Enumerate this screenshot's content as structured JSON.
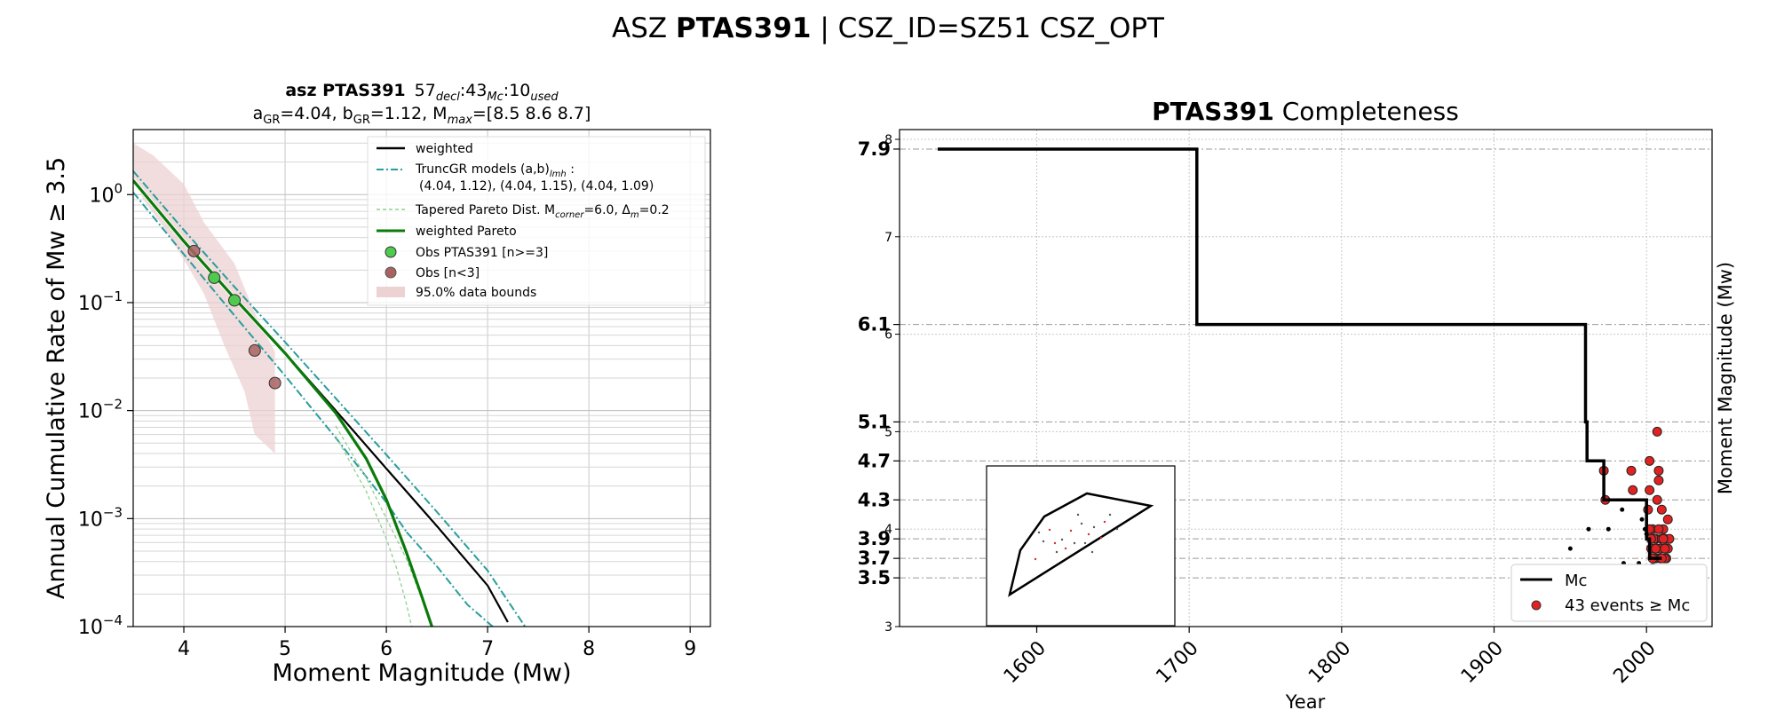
{
  "figure": {
    "title_prefix": "ASZ ",
    "title_bold": "PTAS391",
    "title_suffix": " | CSZ_ID=SZ51 CSZ_OPT"
  },
  "left": {
    "title_line1_prefix": "asz ",
    "title_line1_bold": "PTAS391",
    "title_decl": "57",
    "title_decl_sub": "decl",
    "title_mc": ":43",
    "title_mc_sub": "Mc",
    "title_used": ":10",
    "title_used_sub": "used",
    "title_line2_a": "a",
    "title_line2_a_sub": "GR",
    "title_line2_a_val": "=4.04,  b",
    "title_line2_b_sub": "GR",
    "title_line2_b_val": "=1.12, M",
    "title_line2_m_sub": "max",
    "title_line2_m_val": "=[8.5 8.6 8.7]",
    "legend": {
      "weighted": "weighted",
      "truncgr_a": "TruncGR models (a,b)",
      "truncgr_sub": "lmh",
      "truncgr_b": " :",
      "truncgr_vals": "(4.04, 1.12), (4.04, 1.15), (4.04, 1.09)",
      "tapered_a": "Tapered Pareto Dist. M",
      "tapered_sub1": "corner",
      "tapered_b": "=6.0, Δ",
      "tapered_sub2": "m",
      "tapered_c": "=0.2",
      "weighted_pareto": "weighted Pareto",
      "obs_ge3": "Obs PTAS391 [n>=3]",
      "obs_lt3": "Obs [n<3]",
      "bounds": "95.0% data bounds"
    }
  },
  "right": {
    "title_bold": "PTAS391",
    "title_rest": " Completeness",
    "legend_mc": "Mc",
    "legend_events": "43 events ≥ Mc"
  },
  "chart_data": [
    {
      "type": "line",
      "xlabel": "Moment Magnitude (Mw)",
      "ylabel": "Annual Cumulative Rate of Mw  ≥  3.5",
      "xlim": [
        3.5,
        9.2
      ],
      "ylim": [
        0.0001,
        4
      ],
      "yscale": "log",
      "xticks": [
        4,
        5,
        6,
        7,
        8,
        9
      ],
      "yticks": [
        1,
        0.1,
        0.01,
        0.001,
        0.0001
      ],
      "ytick_labels": [
        {
          "base": "10",
          "exp": "0"
        },
        {
          "base": "10",
          "exp": "−1"
        },
        {
          "base": "10",
          "exp": "−2"
        },
        {
          "base": "10",
          "exp": "−3"
        },
        {
          "base": "10",
          "exp": "−4"
        }
      ],
      "grid": true,
      "legend_position": "top-right",
      "series": [
        {
          "name": "weighted",
          "color": "#000000",
          "x": [
            3.5,
            4.0,
            4.5,
            5.0,
            5.5,
            6.0,
            6.5,
            7.0,
            7.2
          ],
          "y": [
            1.35,
            0.37,
            0.11,
            0.034,
            0.01,
            0.0029,
            0.00085,
            0.00024,
            0.00011
          ]
        },
        {
          "name": "TruncGR models (a,b)lmh",
          "color": "#2a9d9d",
          "lines": [
            {
              "x": [
                3.5,
                4.0,
                4.5,
                5.0,
                5.5,
                6.0,
                6.5,
                7.0,
                7.37
              ],
              "y": [
                1.65,
                0.47,
                0.14,
                0.043,
                0.013,
                0.0039,
                0.00115,
                0.00033,
                0.0001
              ]
            },
            {
              "x": [
                3.5,
                4.0,
                4.5,
                5.0,
                5.5,
                6.0,
                6.2
              ],
              "y": [
                1.05,
                0.28,
                0.076,
                0.021,
                0.0056,
                0.00141,
                0.00075
              ]
            },
            {
              "x": [
                6.2,
                6.5,
                6.8,
                7.05
              ],
              "y": [
                0.00075,
                0.00036,
                0.00016,
                0.0001
              ]
            }
          ]
        },
        {
          "name": "Tapered Pareto Dist.",
          "color": "#8fd08f",
          "lines": [
            {
              "x": [
                5.5,
                5.8,
                6.0,
                6.1,
                6.2,
                6.25
              ],
              "y": [
                0.0058,
                0.0018,
                0.00065,
                0.00035,
                0.00016,
                0.0001
              ]
            },
            {
              "x": [
                5.5,
                5.8,
                6.0,
                6.2,
                6.35,
                6.45
              ],
              "y": [
                0.0072,
                0.0024,
                0.001,
                0.00042,
                0.00018,
                0.0001
              ]
            }
          ]
        },
        {
          "name": "weighted Pareto",
          "color": "#0a7a0a",
          "x": [
            3.5,
            4.0,
            4.5,
            5.0,
            5.5,
            5.8,
            6.0,
            6.2,
            6.35,
            6.45
          ],
          "y": [
            1.35,
            0.37,
            0.11,
            0.034,
            0.0095,
            0.0036,
            0.0015,
            0.00048,
            0.00019,
            0.0001
          ]
        }
      ],
      "points": [
        {
          "name": "Obs PTAS391 [n>=3]",
          "color": "#4ecb4e",
          "x": [
            4.3,
            4.5
          ],
          "y": [
            0.17,
            0.105
          ]
        },
        {
          "name": "Obs [n<3]",
          "color": "#a86262",
          "x": [
            4.1,
            4.7,
            4.9
          ],
          "y": [
            0.3,
            0.036,
            0.018
          ]
        }
      ],
      "bounds": {
        "name": "95.0% data bounds",
        "color": "#ecd2d2",
        "upper": [
          [
            3.5,
            3.0
          ],
          [
            3.7,
            2.3
          ],
          [
            4.0,
            1.25
          ],
          [
            4.2,
            0.55
          ],
          [
            4.5,
            0.23
          ],
          [
            4.7,
            0.08
          ],
          [
            4.9,
            0.035
          ]
        ],
        "lower": [
          [
            4.9,
            0.004
          ],
          [
            4.7,
            0.006
          ],
          [
            4.6,
            0.015
          ],
          [
            4.4,
            0.04
          ],
          [
            4.2,
            0.12
          ],
          [
            4.0,
            0.25
          ],
          [
            3.8,
            0.5
          ],
          [
            3.6,
            0.9
          ],
          [
            3.5,
            1.5
          ]
        ]
      }
    },
    {
      "type": "line",
      "xlabel": "Year",
      "ylabel": "Moment Magnitude (Mw)",
      "xlim": [
        1510,
        2043
      ],
      "ylim": [
        3,
        8.1
      ],
      "xticks": [
        1600,
        1700,
        1800,
        1900,
        2000
      ],
      "yticks_minor": [
        3,
        4,
        5,
        6,
        7,
        8
      ],
      "yticks_major": [
        3.5,
        3.7,
        3.9,
        4.3,
        4.7,
        5.1,
        6.1,
        7.9
      ],
      "grid": true,
      "legend_position": "bottom-right",
      "series": [
        {
          "name": "Mc",
          "color": "#000000",
          "x": [
            1535,
            1705,
            1705,
            1960,
            1960,
            1961,
            1961,
            1972,
            1972,
            2000,
            2000,
            2002,
            2002,
            2010
          ],
          "y": [
            7.9,
            7.9,
            6.1,
            6.1,
            5.1,
            5.1,
            4.7,
            4.7,
            4.3,
            4.3,
            3.9,
            3.9,
            3.7,
            3.7
          ]
        }
      ],
      "points": [
        {
          "name": "43 events ≥ Mc",
          "color": "#e02222",
          "x": [
            1972,
            1973,
            1990,
            1991,
            2002,
            2002,
            2003,
            2004,
            2005,
            2006,
            2007,
            2008,
            2009,
            2010,
            2011,
            2012,
            2013,
            2014,
            2015,
            2001,
            2003,
            2005,
            2007,
            2009,
            2011,
            2013,
            2004,
            2006,
            2008,
            2010,
            2012,
            2014,
            2003,
            2005,
            2007,
            2009,
            2011,
            2002,
            2004,
            2006,
            2008,
            2010,
            2012
          ],
          "y": [
            4.6,
            4.3,
            4.6,
            4.4,
            4.7,
            4.4,
            3.9,
            4.0,
            3.7,
            3.9,
            5.0,
            4.6,
            3.8,
            4.2,
            4.0,
            3.9,
            3.7,
            4.1,
            3.9,
            4.2,
            3.8,
            3.9,
            3.8,
            3.7,
            3.9,
            3.8,
            3.6,
            3.7,
            4.0,
            3.9,
            3.7,
            3.8,
            3.9,
            3.7,
            4.3,
            3.8,
            3.9,
            4.0,
            3.7,
            3.8,
            4.5,
            3.7,
            3.8
          ]
        },
        {
          "name": "below Mc",
          "color": "#000000",
          "x": [
            1950,
            1962,
            1975,
            1984,
            1985,
            1992,
            1997,
            2000,
            2001,
            1999,
            1995
          ],
          "y": [
            3.8,
            4.0,
            4.0,
            4.2,
            3.65,
            3.5,
            4.1,
            3.95,
            3.6,
            4.0,
            3.65
          ]
        },
        {
          "name": "below Mc (grey)",
          "color": "#bdbdbd",
          "x": [
            1975,
            1980,
            1985,
            1995,
            2001,
            2003,
            2006,
            2009,
            2012,
            2015,
            2000,
            2005,
            2010,
            2014,
            2004,
            2008,
            2013
          ],
          "y": [
            3.6,
            3.6,
            3.6,
            3.5,
            3.5,
            3.6,
            3.5,
            3.6,
            3.5,
            3.6,
            3.6,
            3.5,
            3.5,
            3.5,
            3.6,
            3.6,
            3.6
          ]
        }
      ]
    }
  ]
}
